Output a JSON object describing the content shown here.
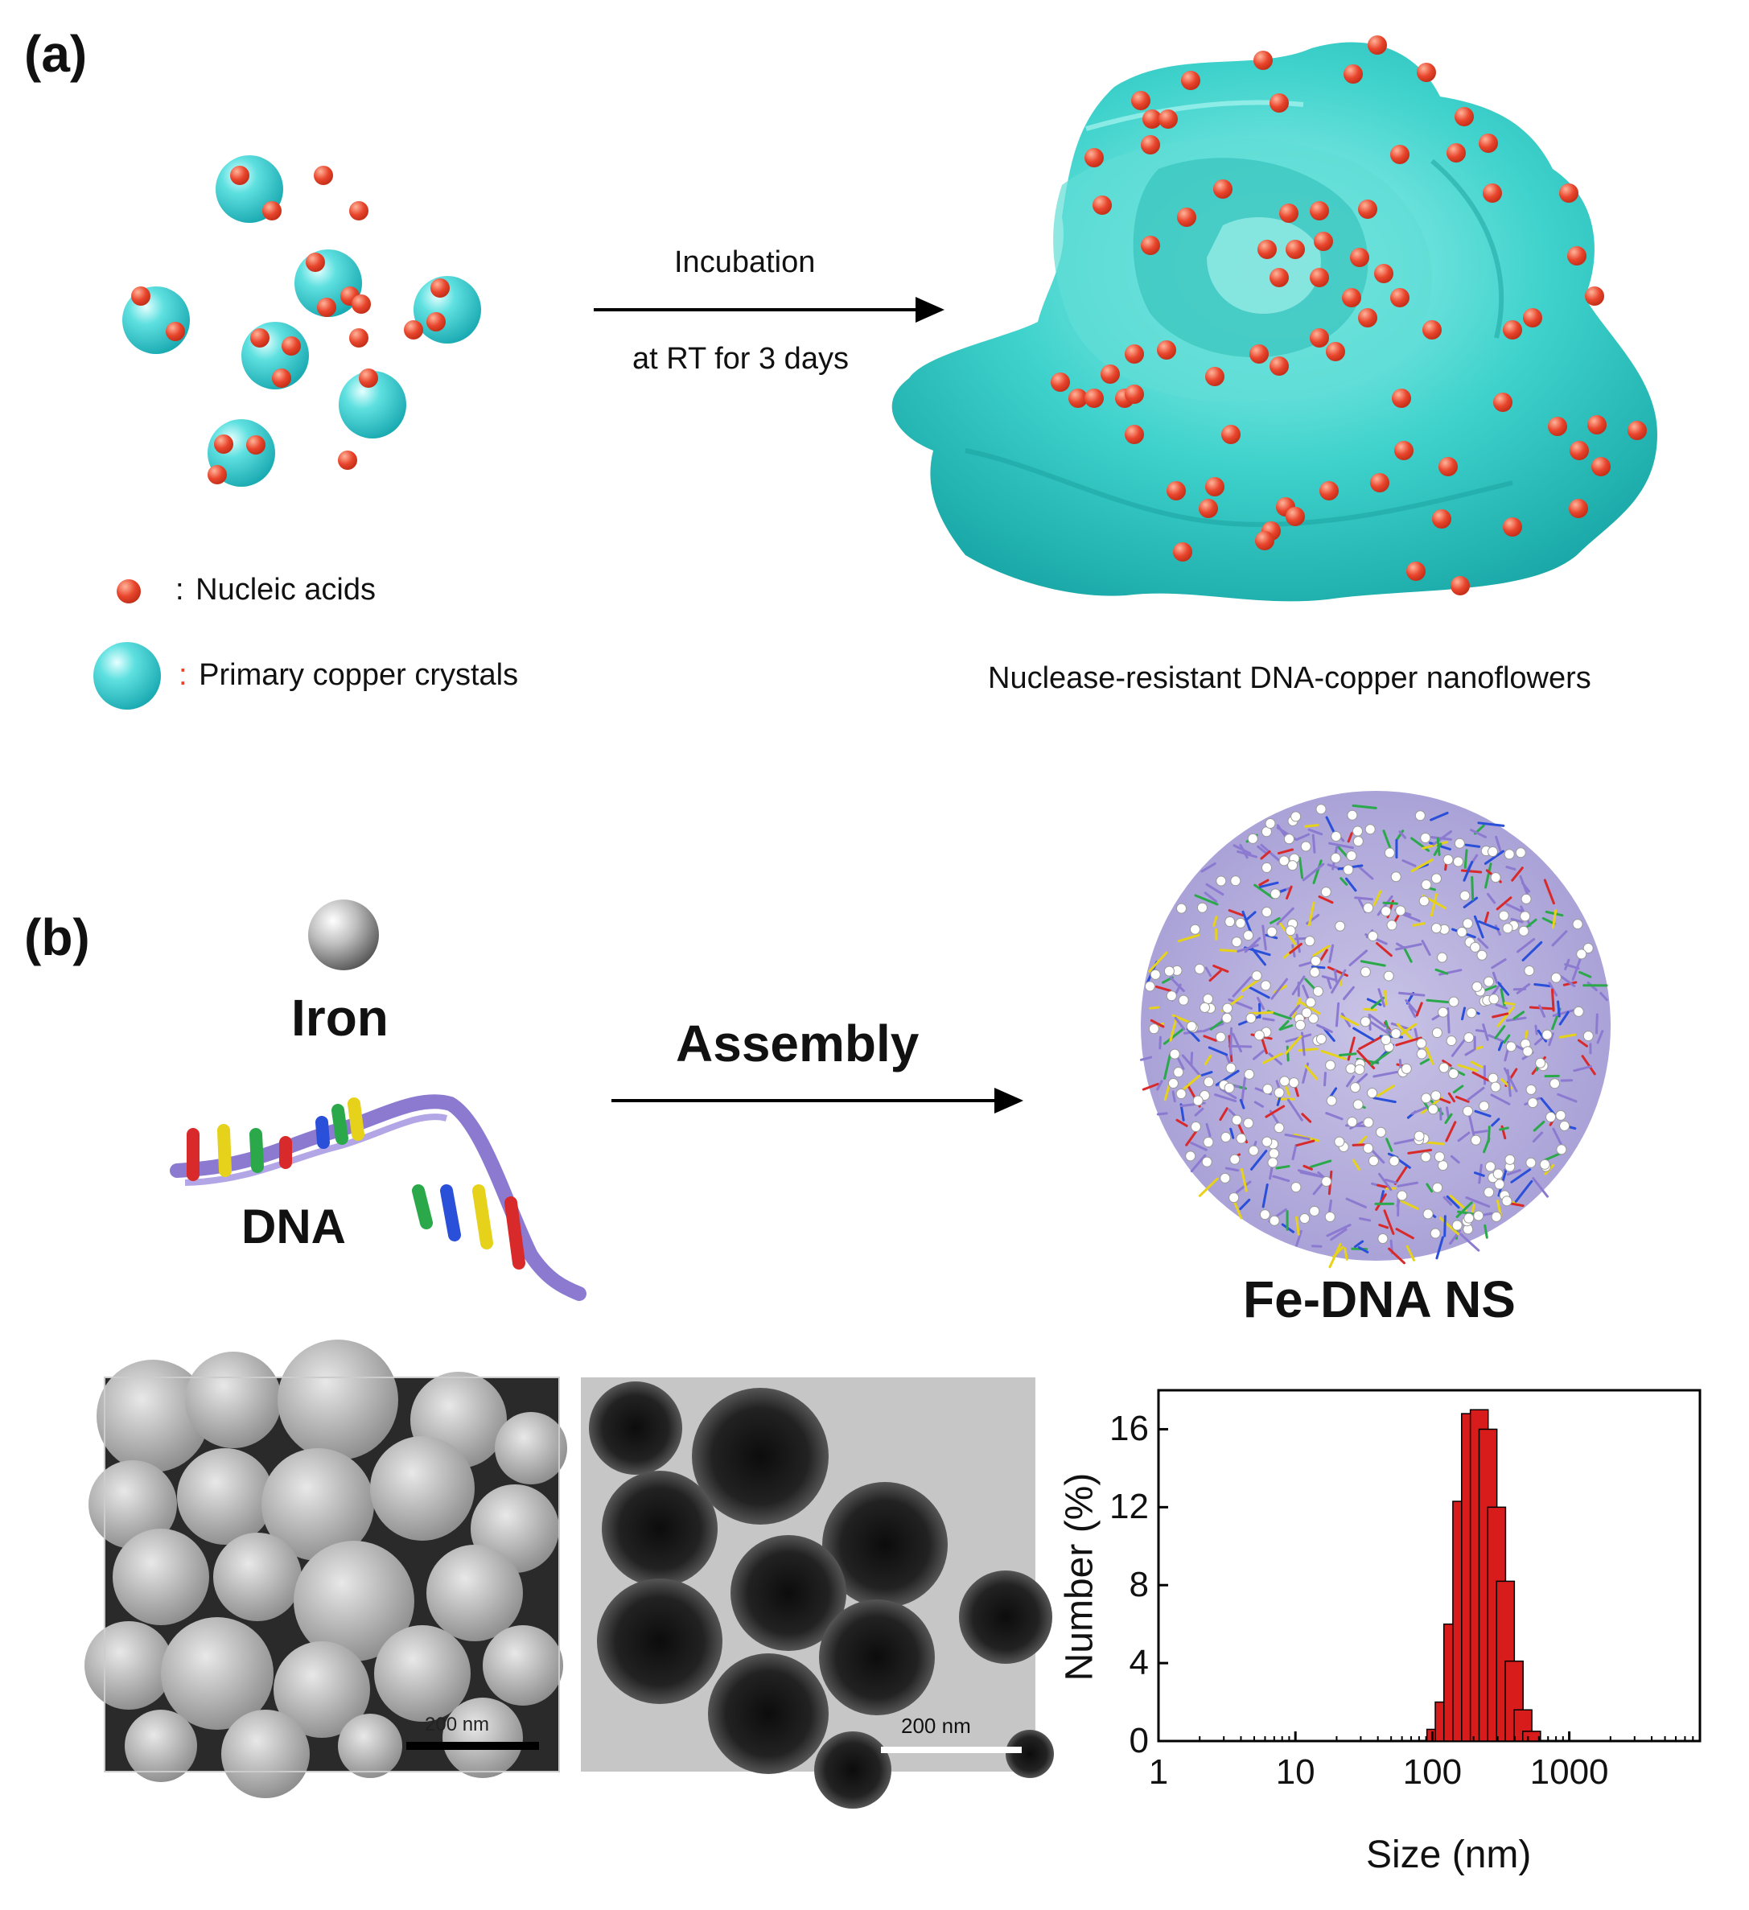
{
  "panel_a": {
    "label": "(a)",
    "arrow_top": "Incubation",
    "arrow_bottom": "at RT for 3 days",
    "legend": [
      {
        "sep": ":",
        "text": "Nucleic acids"
      },
      {
        "sep": ":",
        "text": "Primary copper crystals"
      }
    ],
    "product_caption": "Nuclease-resistant DNA-copper nanoflowers"
  },
  "panel_b": {
    "label": "(b)",
    "iron_label": "Iron",
    "dna_label": "DNA",
    "arrow_label": "Assembly",
    "product_caption": "Fe-DNA NS"
  },
  "sem_scale": "200 nm",
  "tem_scale": "200 nm",
  "colors": {
    "copper": "#2ec4c4",
    "nucleic": "#e8452c",
    "bar": "#d81b1b"
  },
  "chart_data": {
    "type": "bar",
    "xscale": "log",
    "xlabel": "Size (nm)",
    "ylabel": "Number (%)",
    "xlim": [
      1,
      9000
    ],
    "ylim": [
      0,
      18
    ],
    "xticks": [
      "1",
      "10",
      "100",
      "1000"
    ],
    "yticks": [
      "0",
      "4",
      "8",
      "12",
      "16"
    ],
    "x": [
      106,
      122,
      141,
      164,
      190,
      220,
      255,
      295,
      342,
      396,
      459,
      531
    ],
    "values": [
      0.6,
      2.0,
      6.0,
      12.3,
      16.8,
      17.0,
      16.0,
      12.0,
      8.2,
      4.1,
      1.6,
      0.5
    ]
  }
}
